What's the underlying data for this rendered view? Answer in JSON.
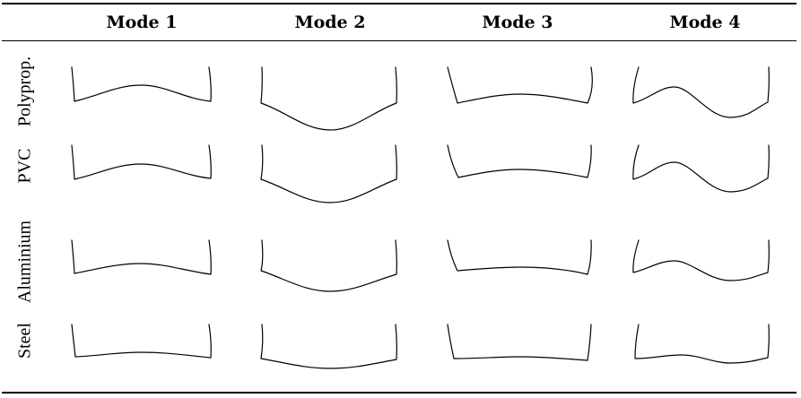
{
  "header": {
    "modes": [
      "Mode 1",
      "Mode 2",
      "Mode 3",
      "Mode 4"
    ]
  },
  "rows": [
    {
      "material": "Polyprop."
    },
    {
      "material": "PVC"
    },
    {
      "material": "Aluminium"
    },
    {
      "material": "Steel"
    }
  ],
  "figure": {
    "stroke_color": "#000000"
  }
}
